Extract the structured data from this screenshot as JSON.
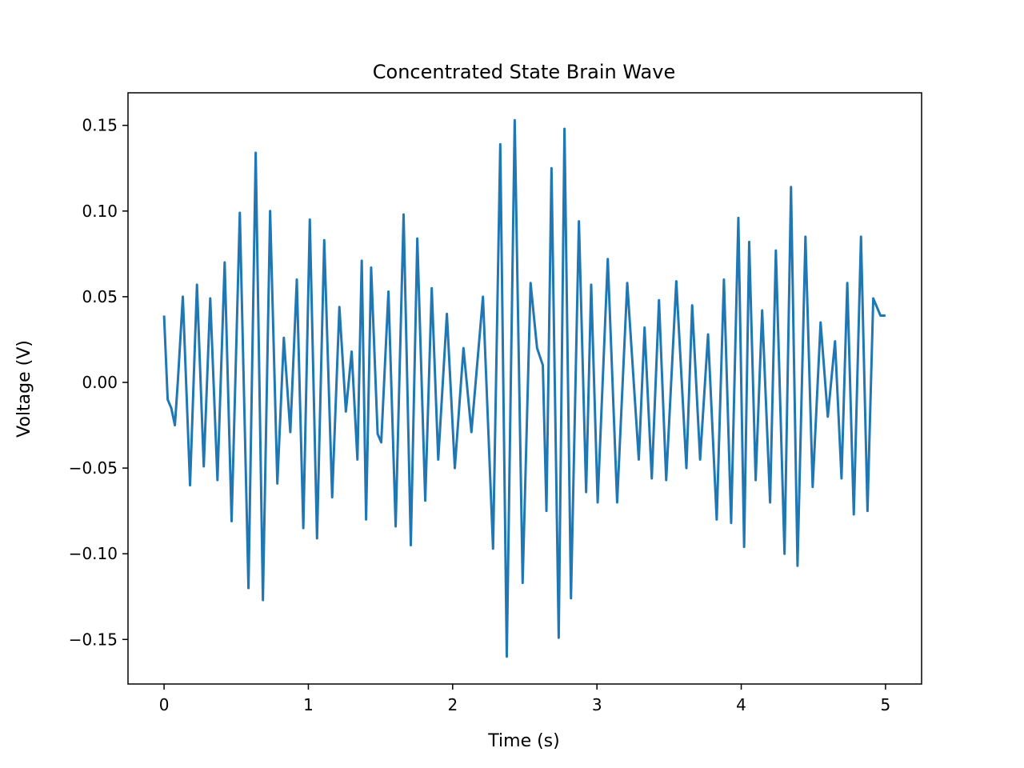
{
  "chart_data": {
    "type": "line",
    "title": "Concentrated State Brain Wave",
    "xlabel": "Time (s)",
    "ylabel": "Voltage (V)",
    "xlim": [
      -0.25,
      5.25
    ],
    "ylim": [
      -0.176,
      0.169
    ],
    "xticks": [
      0,
      1,
      2,
      3,
      4,
      5
    ],
    "xtick_labels": [
      "0",
      "1",
      "2",
      "3",
      "4",
      "5"
    ],
    "yticks": [
      -0.15,
      -0.1,
      -0.05,
      0.0,
      0.05,
      0.1,
      0.15
    ],
    "ytick_labels": [
      "−0.15",
      "−0.10",
      "−0.05",
      "0.00",
      "0.05",
      "0.10",
      "0.15"
    ],
    "grid": false,
    "line_color": "#1f77b4",
    "series": [
      {
        "x": [
          0.0,
          0.025,
          0.05,
          0.075,
          0.095,
          0.13,
          0.18,
          0.228,
          0.275,
          0.32,
          0.37,
          0.42,
          0.468,
          0.525,
          0.585,
          0.635,
          0.685,
          0.735,
          0.785,
          0.83,
          0.875,
          0.92,
          0.965,
          1.01,
          1.06,
          1.11,
          1.165,
          1.215,
          1.26,
          1.3,
          1.34,
          1.37,
          1.4,
          1.435,
          1.48,
          1.505,
          1.555,
          1.605,
          1.66,
          1.71,
          1.755,
          1.81,
          1.855,
          1.9,
          1.96,
          2.015,
          2.075,
          2.13,
          2.21,
          2.28,
          2.33,
          2.375,
          2.43,
          2.485,
          2.54,
          2.585,
          2.625,
          2.65,
          2.685,
          2.735,
          2.775,
          2.82,
          2.875,
          2.925,
          2.96,
          3.005,
          3.075,
          3.14,
          3.21,
          3.29,
          3.33,
          3.38,
          3.43,
          3.48,
          3.55,
          3.62,
          3.66,
          3.715,
          3.77,
          3.83,
          3.88,
          3.93,
          3.98,
          4.02,
          4.055,
          4.1,
          4.145,
          4.2,
          4.24,
          4.3,
          4.345,
          4.39,
          4.445,
          4.495,
          4.55,
          4.6,
          4.65,
          4.695,
          4.735,
          4.78,
          4.83,
          4.875,
          4.915,
          4.965,
          5.0
        ],
        "y": [
          0.039,
          -0.01,
          -0.015,
          -0.025,
          0.0,
          0.05,
          -0.06,
          0.057,
          -0.049,
          0.049,
          -0.057,
          0.07,
          -0.081,
          0.099,
          -0.12,
          0.134,
          -0.127,
          0.1,
          -0.059,
          0.026,
          -0.029,
          0.06,
          -0.085,
          0.095,
          -0.091,
          0.083,
          -0.067,
          0.044,
          -0.017,
          0.018,
          -0.045,
          0.071,
          -0.08,
          0.067,
          -0.03,
          -0.035,
          0.053,
          -0.084,
          0.098,
          -0.095,
          0.084,
          -0.069,
          0.055,
          -0.045,
          0.04,
          -0.05,
          0.02,
          -0.029,
          0.05,
          -0.097,
          0.139,
          -0.16,
          0.153,
          -0.117,
          0.058,
          0.02,
          0.01,
          -0.075,
          0.125,
          -0.149,
          0.148,
          -0.126,
          0.094,
          -0.064,
          0.057,
          -0.07,
          0.072,
          -0.07,
          0.058,
          -0.045,
          0.032,
          -0.056,
          0.048,
          -0.057,
          0.059,
          -0.05,
          0.045,
          -0.045,
          0.028,
          -0.08,
          0.06,
          -0.082,
          0.096,
          -0.096,
          0.082,
          -0.057,
          0.042,
          -0.07,
          0.077,
          -0.1,
          0.114,
          -0.107,
          0.085,
          -0.061,
          0.035,
          -0.02,
          0.024,
          -0.056,
          0.058,
          -0.077,
          0.085,
          -0.075,
          0.049,
          0.039,
          0.039
        ]
      }
    ]
  }
}
